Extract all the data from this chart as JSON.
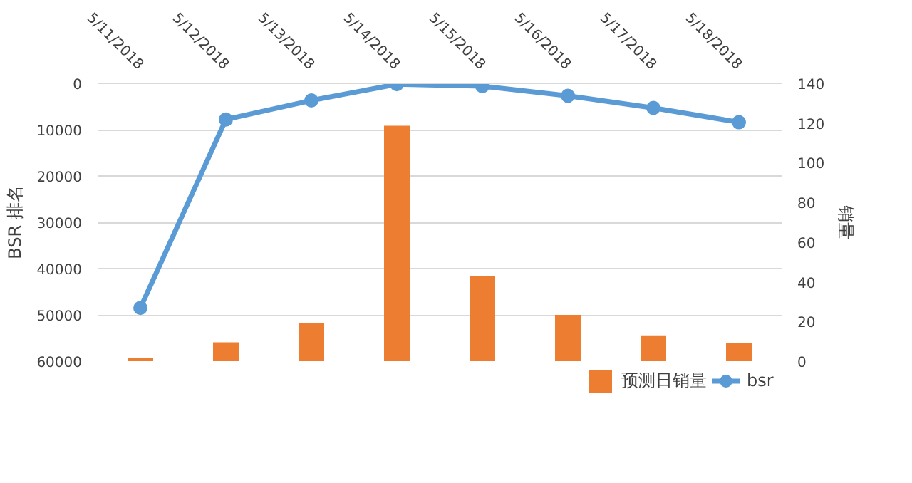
{
  "chart_data": {
    "type": "bar",
    "categories": [
      "5/11/2018",
      "5/12/2018",
      "5/13/2018",
      "5/14/2018",
      "5/15/2018",
      "5/16/2018",
      "5/17/2018",
      "5/18/2018"
    ],
    "series": [
      {
        "name": "预测日销量",
        "axis": "y2",
        "color": "#ed7d31",
        "values": [
          1.5,
          9.5,
          19,
          118.6,
          43,
          23.3,
          13,
          9
        ]
      },
      {
        "name": "bsr",
        "type": "line",
        "color": "#5b9bd5",
        "marker": "circle",
        "values": [
          48500,
          7800,
          3700,
          200,
          600,
          2700,
          5300,
          8400
        ]
      }
    ],
    "ylabel": "BSR 排名",
    "y2label": "销量",
    "ylim": [
      60000,
      0
    ],
    "yticks": [
      0,
      10000,
      20000,
      30000,
      40000,
      50000,
      60000
    ],
    "y2lim": [
      0,
      140
    ],
    "y2ticks": [
      0,
      20,
      40,
      60,
      80,
      100,
      120,
      140
    ],
    "grid": "y",
    "legend": "bottom"
  }
}
